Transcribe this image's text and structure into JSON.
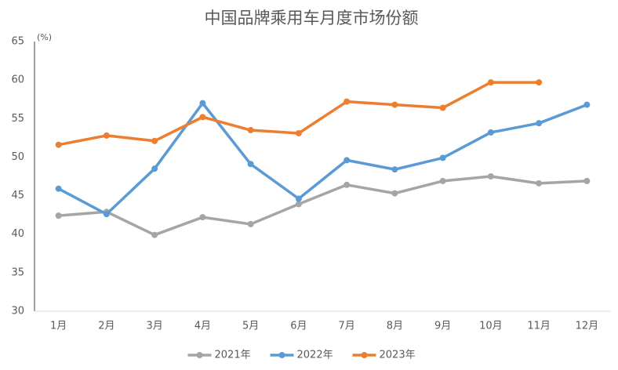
{
  "chart_data": {
    "type": "line",
    "title": "中国品牌乘用车月度市场份额",
    "y_unit": "(%)",
    "categories": [
      "1月",
      "2月",
      "3月",
      "4月",
      "5月",
      "6月",
      "7月",
      "8月",
      "9月",
      "10月",
      "11月",
      "12月"
    ],
    "series": [
      {
        "name": "2021年",
        "color": "#a5a5a5",
        "values": [
          42.4,
          42.9,
          39.9,
          42.2,
          41.3,
          43.9,
          46.4,
          45.3,
          46.9,
          47.5,
          46.6,
          46.9
        ]
      },
      {
        "name": "2022年",
        "color": "#5b9bd5",
        "values": [
          45.9,
          42.6,
          48.5,
          57.0,
          49.1,
          44.6,
          49.6,
          48.4,
          49.9,
          53.2,
          54.4,
          56.8
        ]
      },
      {
        "name": "2023年",
        "color": "#ed7d31",
        "values": [
          51.6,
          52.8,
          52.1,
          55.2,
          53.5,
          53.1,
          57.2,
          56.8,
          56.4,
          59.7,
          59.7,
          null
        ]
      }
    ],
    "ylim": [
      30,
      65
    ],
    "yticks": [
      30,
      35,
      40,
      45,
      50,
      55,
      60,
      65
    ],
    "grid": false,
    "legend": "bottom"
  }
}
